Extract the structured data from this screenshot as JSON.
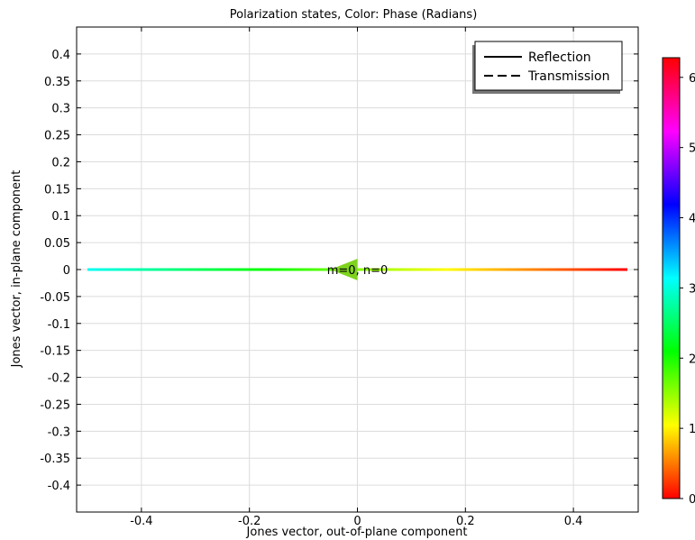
{
  "chart_data": {
    "type": "line",
    "title": "Polarization states, Color: Phase (Radians)",
    "xlabel": "Jones vector, out-of-plane component",
    "ylabel": "Jones vector, in-plane component",
    "xlim": [
      -0.52,
      0.52
    ],
    "ylim": [
      -0.45,
      0.45
    ],
    "x_ticks": [
      {
        "value": -0.4,
        "label": "-0.4"
      },
      {
        "value": -0.2,
        "label": "-0.2"
      },
      {
        "value": 0,
        "label": "0"
      },
      {
        "value": 0.2,
        "label": "0.2"
      },
      {
        "value": 0.4,
        "label": "0.4"
      }
    ],
    "y_ticks": [
      {
        "value": 0.4,
        "label": "0.4"
      },
      {
        "value": 0.35,
        "label": "0.35"
      },
      {
        "value": 0.3,
        "label": "0.3"
      },
      {
        "value": 0.25,
        "label": "0.25"
      },
      {
        "value": 0.2,
        "label": "0.2"
      },
      {
        "value": 0.15,
        "label": "0.15"
      },
      {
        "value": 0.1,
        "label": "0.1"
      },
      {
        "value": 0.05,
        "label": "0.05"
      },
      {
        "value": 0,
        "label": "0"
      },
      {
        "value": -0.05,
        "label": "-0.05"
      },
      {
        "value": -0.1,
        "label": "-0.1"
      },
      {
        "value": -0.15,
        "label": "-0.15"
      },
      {
        "value": -0.2,
        "label": "-0.2"
      },
      {
        "value": -0.25,
        "label": "-0.25"
      },
      {
        "value": -0.3,
        "label": "-0.3"
      },
      {
        "value": -0.35,
        "label": "-0.35"
      },
      {
        "value": -0.4,
        "label": "-0.4"
      }
    ],
    "grid": true,
    "legend": {
      "placement": "top-right",
      "entries": [
        {
          "name": "Reflection",
          "style": "solid"
        },
        {
          "name": "Transmission",
          "style": "dashed"
        }
      ]
    },
    "series": [
      {
        "name": "Reflection",
        "style": "solid",
        "x": [
          -0.5,
          0.5
        ],
        "y": [
          0,
          0
        ],
        "phase": [
          3.1,
          0.0
        ]
      }
    ],
    "arrow": {
      "x": 0,
      "y": 0,
      "direction": "left",
      "color": "#7fd31e"
    },
    "annotation": {
      "text": "m=0, n=0",
      "x": 0,
      "y": 0
    },
    "colorbar": {
      "label_visible": [
        "0",
        "1",
        "2",
        "3",
        "4",
        "5",
        "6"
      ],
      "range": [
        0,
        6.28
      ],
      "colors": [
        "#ff0000",
        "#ffff00",
        "#00ff00",
        "#00ffff",
        "#0000ff",
        "#ff00ff",
        "#ff0000"
      ]
    }
  }
}
